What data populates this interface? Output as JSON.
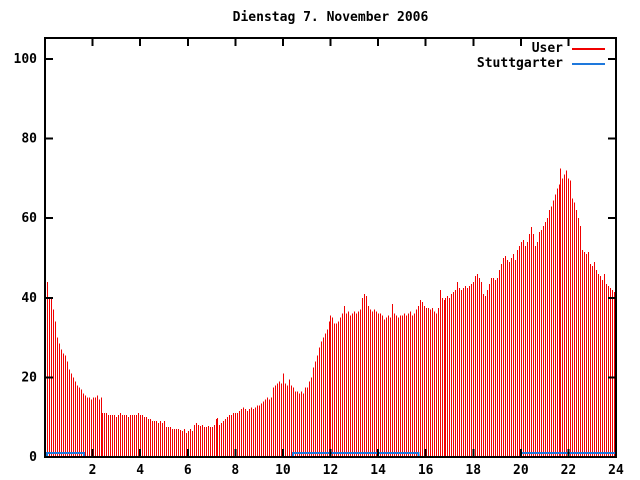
{
  "title": "Dienstag 7. November 2006",
  "colors": {
    "user": "#f00000",
    "stuttgarter": "#1e78dc",
    "axis": "#000000",
    "background": "#ffffff"
  },
  "legend": [
    {
      "name": "User",
      "color": "#f00000"
    },
    {
      "name": "Stuttgarter",
      "color": "#1e78dc"
    }
  ],
  "chart_data": {
    "type": "bar",
    "title": "Dienstag 7. November 2006",
    "xlabel": "",
    "ylabel": "",
    "xlim": [
      0,
      24
    ],
    "ylim": [
      0,
      105.3
    ],
    "xticks": [
      2,
      4,
      6,
      8,
      10,
      12,
      14,
      16,
      18,
      20,
      22,
      24
    ],
    "yticks": [
      0,
      20,
      40,
      60,
      80,
      100
    ],
    "grid": false,
    "legend_position": "top-right",
    "x_step_hours": 0.0833333,
    "series": [
      {
        "name": "User",
        "style": "impulses",
        "color": "#f00000",
        "values": [
          44,
          40,
          40,
          37,
          34,
          30,
          28.5,
          27,
          26,
          25.5,
          24,
          22,
          21,
          20,
          19,
          18,
          17.5,
          17,
          16,
          15.5,
          15,
          15,
          14.5,
          15,
          15,
          15.5,
          14.5,
          15,
          11,
          11,
          11,
          10.5,
          10.5,
          10.5,
          10.5,
          10,
          10.5,
          11,
          10.5,
          10.5,
          10.5,
          10,
          10.5,
          10.5,
          10.5,
          10.5,
          11,
          10.5,
          10.5,
          10,
          10,
          9.5,
          9.5,
          9,
          9,
          9,
          8.5,
          9,
          8.5,
          9,
          7.5,
          7.5,
          7.5,
          7,
          7,
          7,
          7,
          6.8,
          6.5,
          7,
          6,
          6.5,
          7,
          6.5,
          8,
          8.5,
          8,
          7.8,
          8,
          7.5,
          7.5,
          7.8,
          7.5,
          7.5,
          8,
          9.5,
          9.8,
          8,
          8.5,
          9,
          9.5,
          10,
          10.5,
          10.5,
          11,
          11,
          11,
          11.5,
          12,
          12.5,
          12,
          11.5,
          12,
          12.5,
          12,
          12.5,
          13,
          13,
          13.5,
          14,
          14.5,
          15,
          14.5,
          15,
          17.5,
          18,
          18.5,
          19,
          18.5,
          21,
          18.5,
          18,
          19.5,
          18,
          17.5,
          16.5,
          16.5,
          16,
          16.5,
          16,
          17.5,
          17.5,
          19,
          20,
          22.5,
          24,
          25.5,
          27.5,
          29,
          30,
          31,
          32,
          34,
          35.5,
          35,
          33.5,
          33.5,
          34,
          35,
          36,
          38,
          36,
          36.5,
          35.5,
          36,
          36.5,
          36,
          36.5,
          37,
          40,
          41,
          40.5,
          38,
          37,
          36.5,
          37,
          36.5,
          36,
          36,
          35.5,
          34.5,
          35,
          35.5,
          35,
          38.5,
          36,
          35.5,
          35,
          35.5,
          35.5,
          36,
          35.5,
          36,
          36.5,
          35.5,
          36,
          37,
          38,
          39.5,
          39,
          38,
          37.5,
          37.5,
          37,
          37.5,
          36.5,
          36,
          37.5,
          42,
          40,
          39.5,
          40,
          40.5,
          40,
          41,
          41.5,
          42,
          44,
          42.5,
          42,
          42.5,
          43,
          42.5,
          43,
          43.5,
          44,
          45.5,
          46,
          45,
          44,
          41,
          40.5,
          42,
          43.5,
          45,
          45,
          44.5,
          45,
          47,
          48.5,
          50,
          50.5,
          49.5,
          49,
          50,
          51,
          49.5,
          52,
          53,
          54,
          54.5,
          53,
          54,
          56,
          57.8,
          56,
          53,
          54,
          56.5,
          57,
          58,
          59,
          60,
          62,
          63,
          64.5,
          66,
          67.5,
          68.5,
          72.5,
          70,
          71,
          72,
          70,
          69.5,
          65,
          64,
          62,
          60,
          58,
          52,
          51.5,
          51,
          51.5,
          48.5,
          48,
          49,
          47,
          46,
          45.5,
          44.5,
          46,
          43.5,
          43,
          42.5,
          42,
          41.5,
          41
        ]
      },
      {
        "name": "Stuttgarter",
        "style": "line",
        "color": "#1e78dc",
        "level_value": 1,
        "segments": [
          [
            0.08,
            1.64
          ],
          [
            10.42,
            15.7
          ],
          [
            20.0,
            24.0
          ]
        ]
      }
    ]
  }
}
